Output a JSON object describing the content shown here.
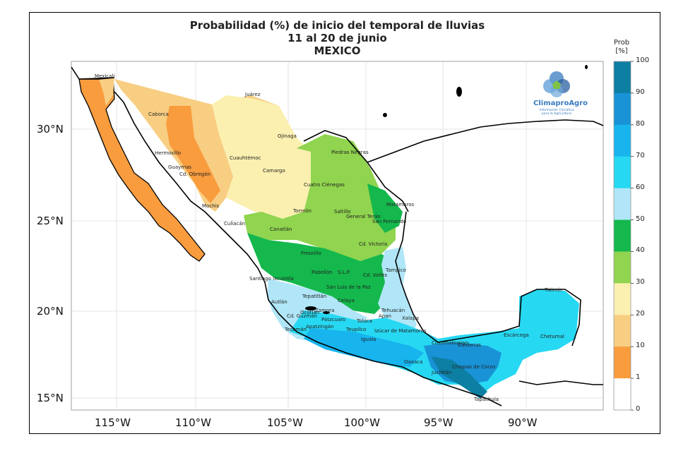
{
  "title": {
    "line1": "Probabilidad (%) de inicio del temporal de lluvias",
    "line2": "11 al 20 de junio",
    "line3": "MEXICO"
  },
  "axes": {
    "lat_labels": [
      "30°N",
      "25°N",
      "20°N",
      "15°N"
    ],
    "lon_labels": [
      "115°W",
      "110°W",
      "105°W",
      "100°W",
      "95°W",
      "90°W"
    ]
  },
  "colorbar": {
    "title_line1": "Prob",
    "title_line2": "[%]",
    "ticks": [
      "100",
      "90",
      "80",
      "70",
      "60",
      "50",
      "40",
      "30",
      "20",
      "10",
      "1",
      "0"
    ],
    "colors": [
      "#0d7fa3",
      "#1993d6",
      "#17b4ee",
      "#27d8f2",
      "#b0e6f7",
      "#14b84c",
      "#90d44f",
      "#fbf0b0",
      "#f8ce83",
      "#f89c3e",
      "#ffffff"
    ]
  },
  "logo": {
    "name": "ClimaproAgro",
    "subtitle": "Información Climática para la Agricultura"
  },
  "cities": [
    {
      "name": "Mexicali"
    },
    {
      "name": "Juárez"
    },
    {
      "name": "Caborca"
    },
    {
      "name": "Ojinaga"
    },
    {
      "name": "Hermosillo"
    },
    {
      "name": "Piedras Negras"
    },
    {
      "name": "Cuauhtémoc"
    },
    {
      "name": "Guaymas"
    },
    {
      "name": "Cd. Obregón"
    },
    {
      "name": "Camargo"
    },
    {
      "name": "Cuatro Ciénegas"
    },
    {
      "name": "Mochis"
    },
    {
      "name": "Matamoros"
    },
    {
      "name": "Torreón"
    },
    {
      "name": "Saltillo"
    },
    {
      "name": "General Terán"
    },
    {
      "name": "Culiacán"
    },
    {
      "name": "San Fernando"
    },
    {
      "name": "Canatlán"
    },
    {
      "name": "Cd. Victoria"
    },
    {
      "name": "Fresnillo"
    },
    {
      "name": "Pabellón"
    },
    {
      "name": "S.L.P."
    },
    {
      "name": "Tampico"
    },
    {
      "name": "Cd. Valles"
    },
    {
      "name": "Santiago Ixcuintla"
    },
    {
      "name": "Tepatitlán"
    },
    {
      "name": "San Luis de la Paz"
    },
    {
      "name": "Tizimín"
    },
    {
      "name": "Autlán"
    },
    {
      "name": "Celaya"
    },
    {
      "name": "Ocotlán"
    },
    {
      "name": "Cd. Guzmán"
    },
    {
      "name": "Zamora"
    },
    {
      "name": "Pátzcuaro"
    },
    {
      "name": "Apan"
    },
    {
      "name": "Xalapa"
    },
    {
      "name": "Toluca"
    },
    {
      "name": "Apatzingán"
    },
    {
      "name": "Tecomán"
    },
    {
      "name": "Tehuacán"
    },
    {
      "name": "Teupilco"
    },
    {
      "name": "Izúcar de Matamoros"
    },
    {
      "name": "Iguala"
    },
    {
      "name": "Cosamaloapan"
    },
    {
      "name": "Escárcega"
    },
    {
      "name": "Chetumal"
    },
    {
      "name": "Cárdenas"
    },
    {
      "name": "Oaxaca"
    },
    {
      "name": "Juchitán"
    },
    {
      "name": "Chiapas de Corzo"
    },
    {
      "name": "Tapachula"
    }
  ]
}
